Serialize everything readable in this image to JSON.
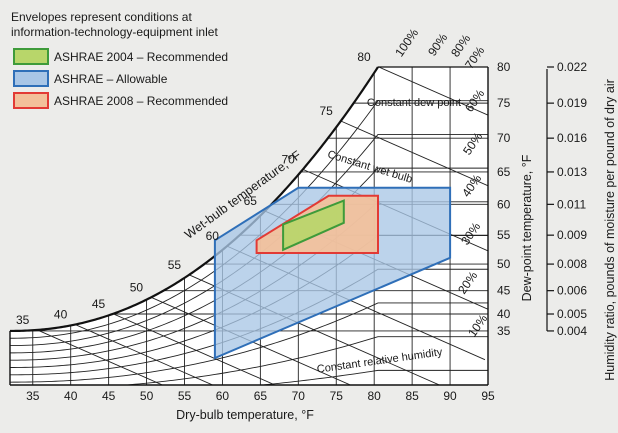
{
  "chart_data": {
    "type": "psychrometric",
    "note_lines": [
      "Envelopes represent conditions at",
      "information-technology-equipment inlet"
    ],
    "xlabel": "Dry-bulb temperature, °F",
    "x_ticks": [
      35,
      40,
      45,
      50,
      55,
      60,
      65,
      70,
      75,
      80,
      85,
      90,
      95
    ],
    "xlim": [
      32,
      95
    ],
    "wetbulb_label": "Wet-bulb temperature, °F",
    "wetbulb_ticks": [
      35,
      40,
      45,
      50,
      55,
      60,
      65,
      70,
      75,
      80
    ],
    "dewpoint_label": "Dew-point temperature, °F",
    "dewpoint_ticks": [
      35,
      40,
      45,
      50,
      55,
      60,
      65,
      70,
      75,
      80
    ],
    "humidity_ratio_label": "Humidity ratio, pounds of moisture per pound of dry air",
    "humidity_ratio_ticks": [
      "0.004",
      "0.005",
      "0.006",
      "0.008",
      "0.009",
      "0.011",
      "0.013",
      "0.016",
      "0.019",
      "0.022"
    ],
    "rh_ticks": [
      "10%",
      "20%",
      "30%",
      "40%",
      "50%",
      "60%",
      "70%",
      "80%",
      "90%",
      "100%"
    ],
    "annotations": {
      "dew_point": "Constant dew point",
      "wet_bulb": "Constant wet bulb",
      "relative_humidity": "Constant relative humidity"
    },
    "legend": {
      "placement": "top-left",
      "entries": [
        {
          "label": "ASHRAE 2004 – Recommended",
          "fill": "#b8d66a",
          "stroke": "#3e9b3a"
        },
        {
          "label": "ASHRAE – Allowable",
          "fill": "#a9c6e6",
          "stroke": "#2f6fb8"
        },
        {
          "label": "ASHRAE 2008 – Recommended",
          "fill": "#f3c09a",
          "stroke": "#e23a35"
        }
      ]
    },
    "envelopes": [
      {
        "id": "allowable",
        "fill": "#a9c6e6",
        "stroke": "#2f6fb8",
        "points": [
          [
            59,
            45.5
          ],
          [
            70,
            62
          ],
          [
            90,
            62
          ],
          [
            90,
            40
          ],
          [
            59,
            8.5
          ]
        ]
      },
      {
        "id": "rec2008",
        "fill": "#f3c09a",
        "stroke": "#e23a35",
        "points": [
          [
            64.5,
            45.5
          ],
          [
            74,
            59.5
          ],
          [
            80.5,
            59.5
          ],
          [
            80.5,
            41.5
          ],
          [
            64.5,
            41.5
          ]
        ]
      },
      {
        "id": "rec2004",
        "fill": "#b8d66a",
        "stroke": "#3e9b3a",
        "points": [
          [
            68,
            42.5
          ],
          [
            68,
            50.5
          ],
          [
            76,
            58
          ],
          [
            76,
            51
          ]
        ]
      }
    ]
  }
}
